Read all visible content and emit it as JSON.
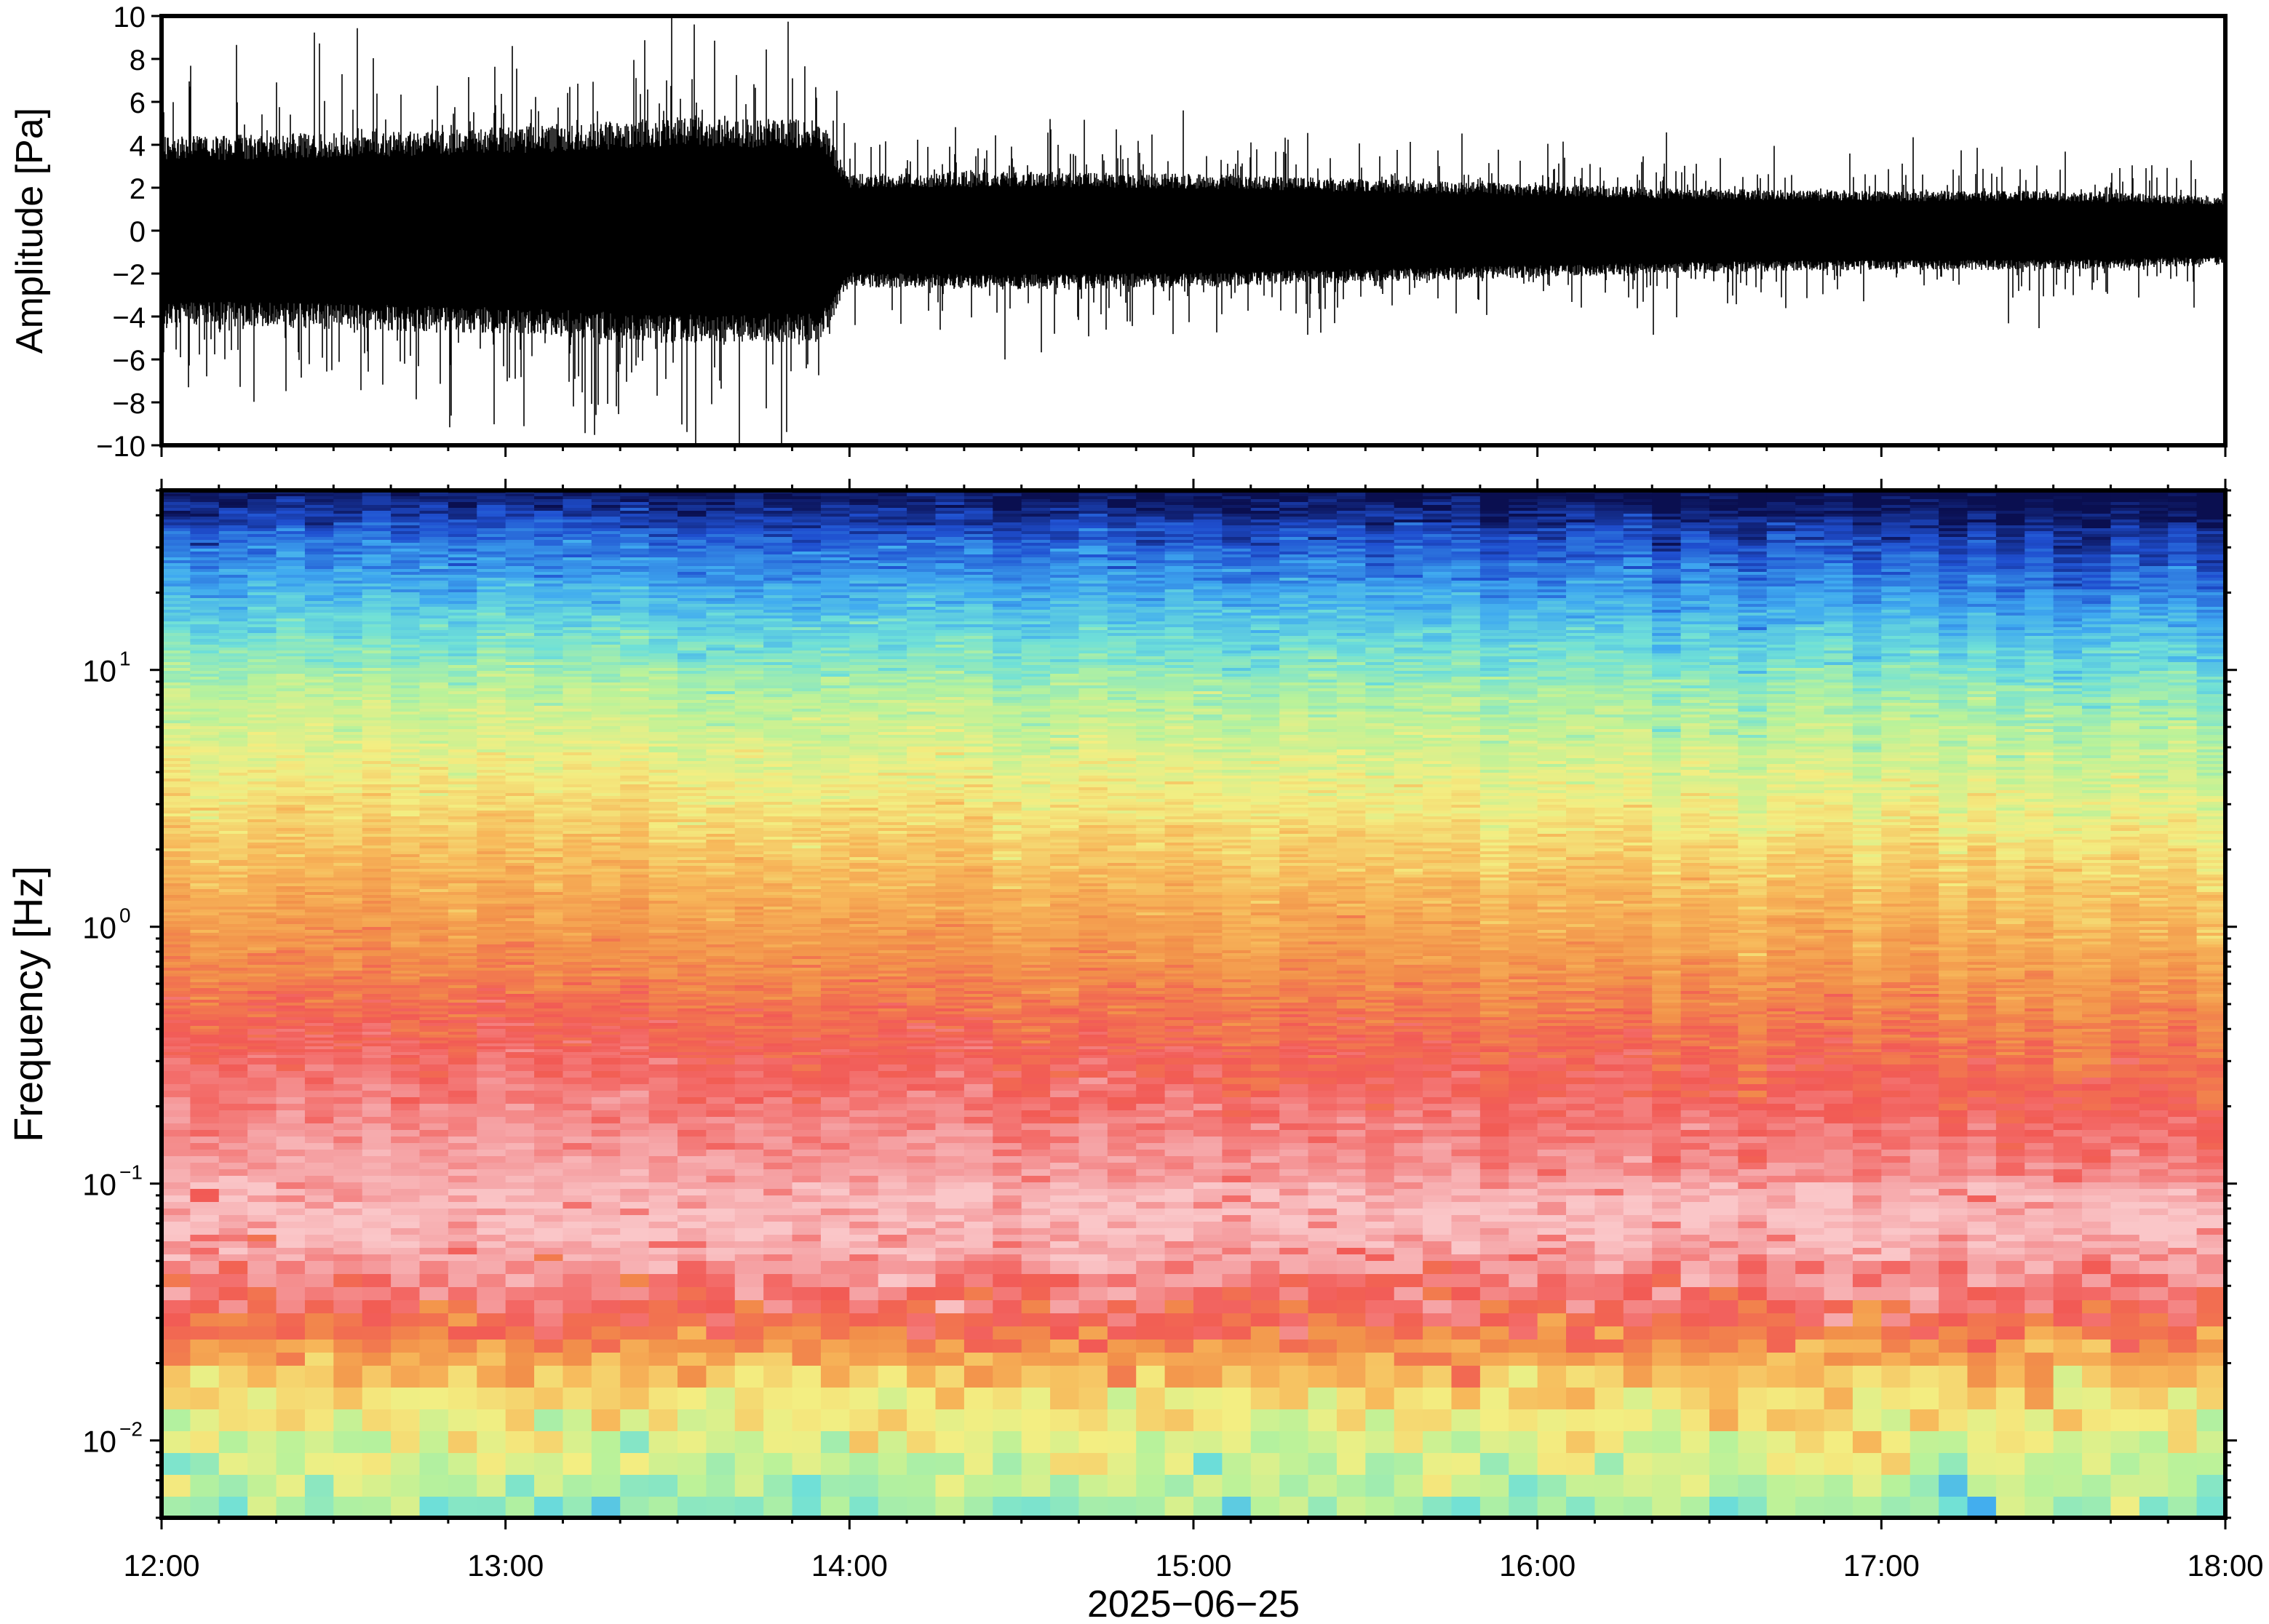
{
  "chart_data": [
    {
      "type": "line",
      "panel": "waveform",
      "ylabel": "Amplitude [Pa]",
      "xlabel": "",
      "ylim": [
        -10,
        10
      ],
      "xlim": [
        "12:00",
        "18:00"
      ],
      "yticks": [
        "10",
        "8",
        "6",
        "4",
        "2",
        "0",
        "−2",
        "−4",
        "−6",
        "−8",
        "−10"
      ],
      "ytick_values": [
        10,
        8,
        6,
        4,
        2,
        0,
        -2,
        -4,
        -6,
        -8,
        -10
      ],
      "grid": false,
      "series": [
        {
          "color": "#000000",
          "envelope": {
            "x": [
              "12:00",
              "12:30",
              "13:00",
              "13:30",
              "13:55",
              "14:00",
              "14:30",
              "15:00",
              "15:30",
              "16:00",
              "16:30",
              "17:00",
              "17:30",
              "18:00"
            ],
            "typical_abs": [
              3.8,
              4.0,
              4.2,
              4.6,
              4.5,
              2.3,
              2.4,
              2.3,
              2.1,
              1.9,
              1.7,
              1.6,
              1.6,
              1.4
            ],
            "peak_abs": [
              8.0,
              9.5,
              9.0,
              10,
              10,
              6.0,
              6.0,
              6.5,
              6.0,
              5.0,
              5.0,
              5.0,
              4.5,
              3.5
            ]
          }
        }
      ]
    },
    {
      "type": "heatmap",
      "panel": "spectrogram",
      "ylabel": "Frequency [Hz]",
      "xlabel": "2025−06−25",
      "xticks": [
        "12:00",
        "13:00",
        "14:00",
        "15:00",
        "16:00",
        "17:00",
        "18:00"
      ],
      "yscale": "log",
      "ylim": [
        0.005,
        50
      ],
      "yticks": [
        {
          "value": 10,
          "base": "10",
          "exp": "1"
        },
        {
          "value": 1,
          "base": "10",
          "exp": "0"
        },
        {
          "value": 0.1,
          "base": "10",
          "exp": "−1"
        },
        {
          "value": 0.01,
          "base": "10",
          "exp": "−2"
        }
      ],
      "colormap": [
        "#0a0f50",
        "#1f4fd0",
        "#3fa9f0",
        "#6fe0d8",
        "#b9f29a",
        "#f3ee82",
        "#f7b85a",
        "#f2914a",
        "#f25a55",
        "#f5a0a2",
        "#fac6c8"
      ],
      "colorbar": false,
      "grid": false
    }
  ]
}
